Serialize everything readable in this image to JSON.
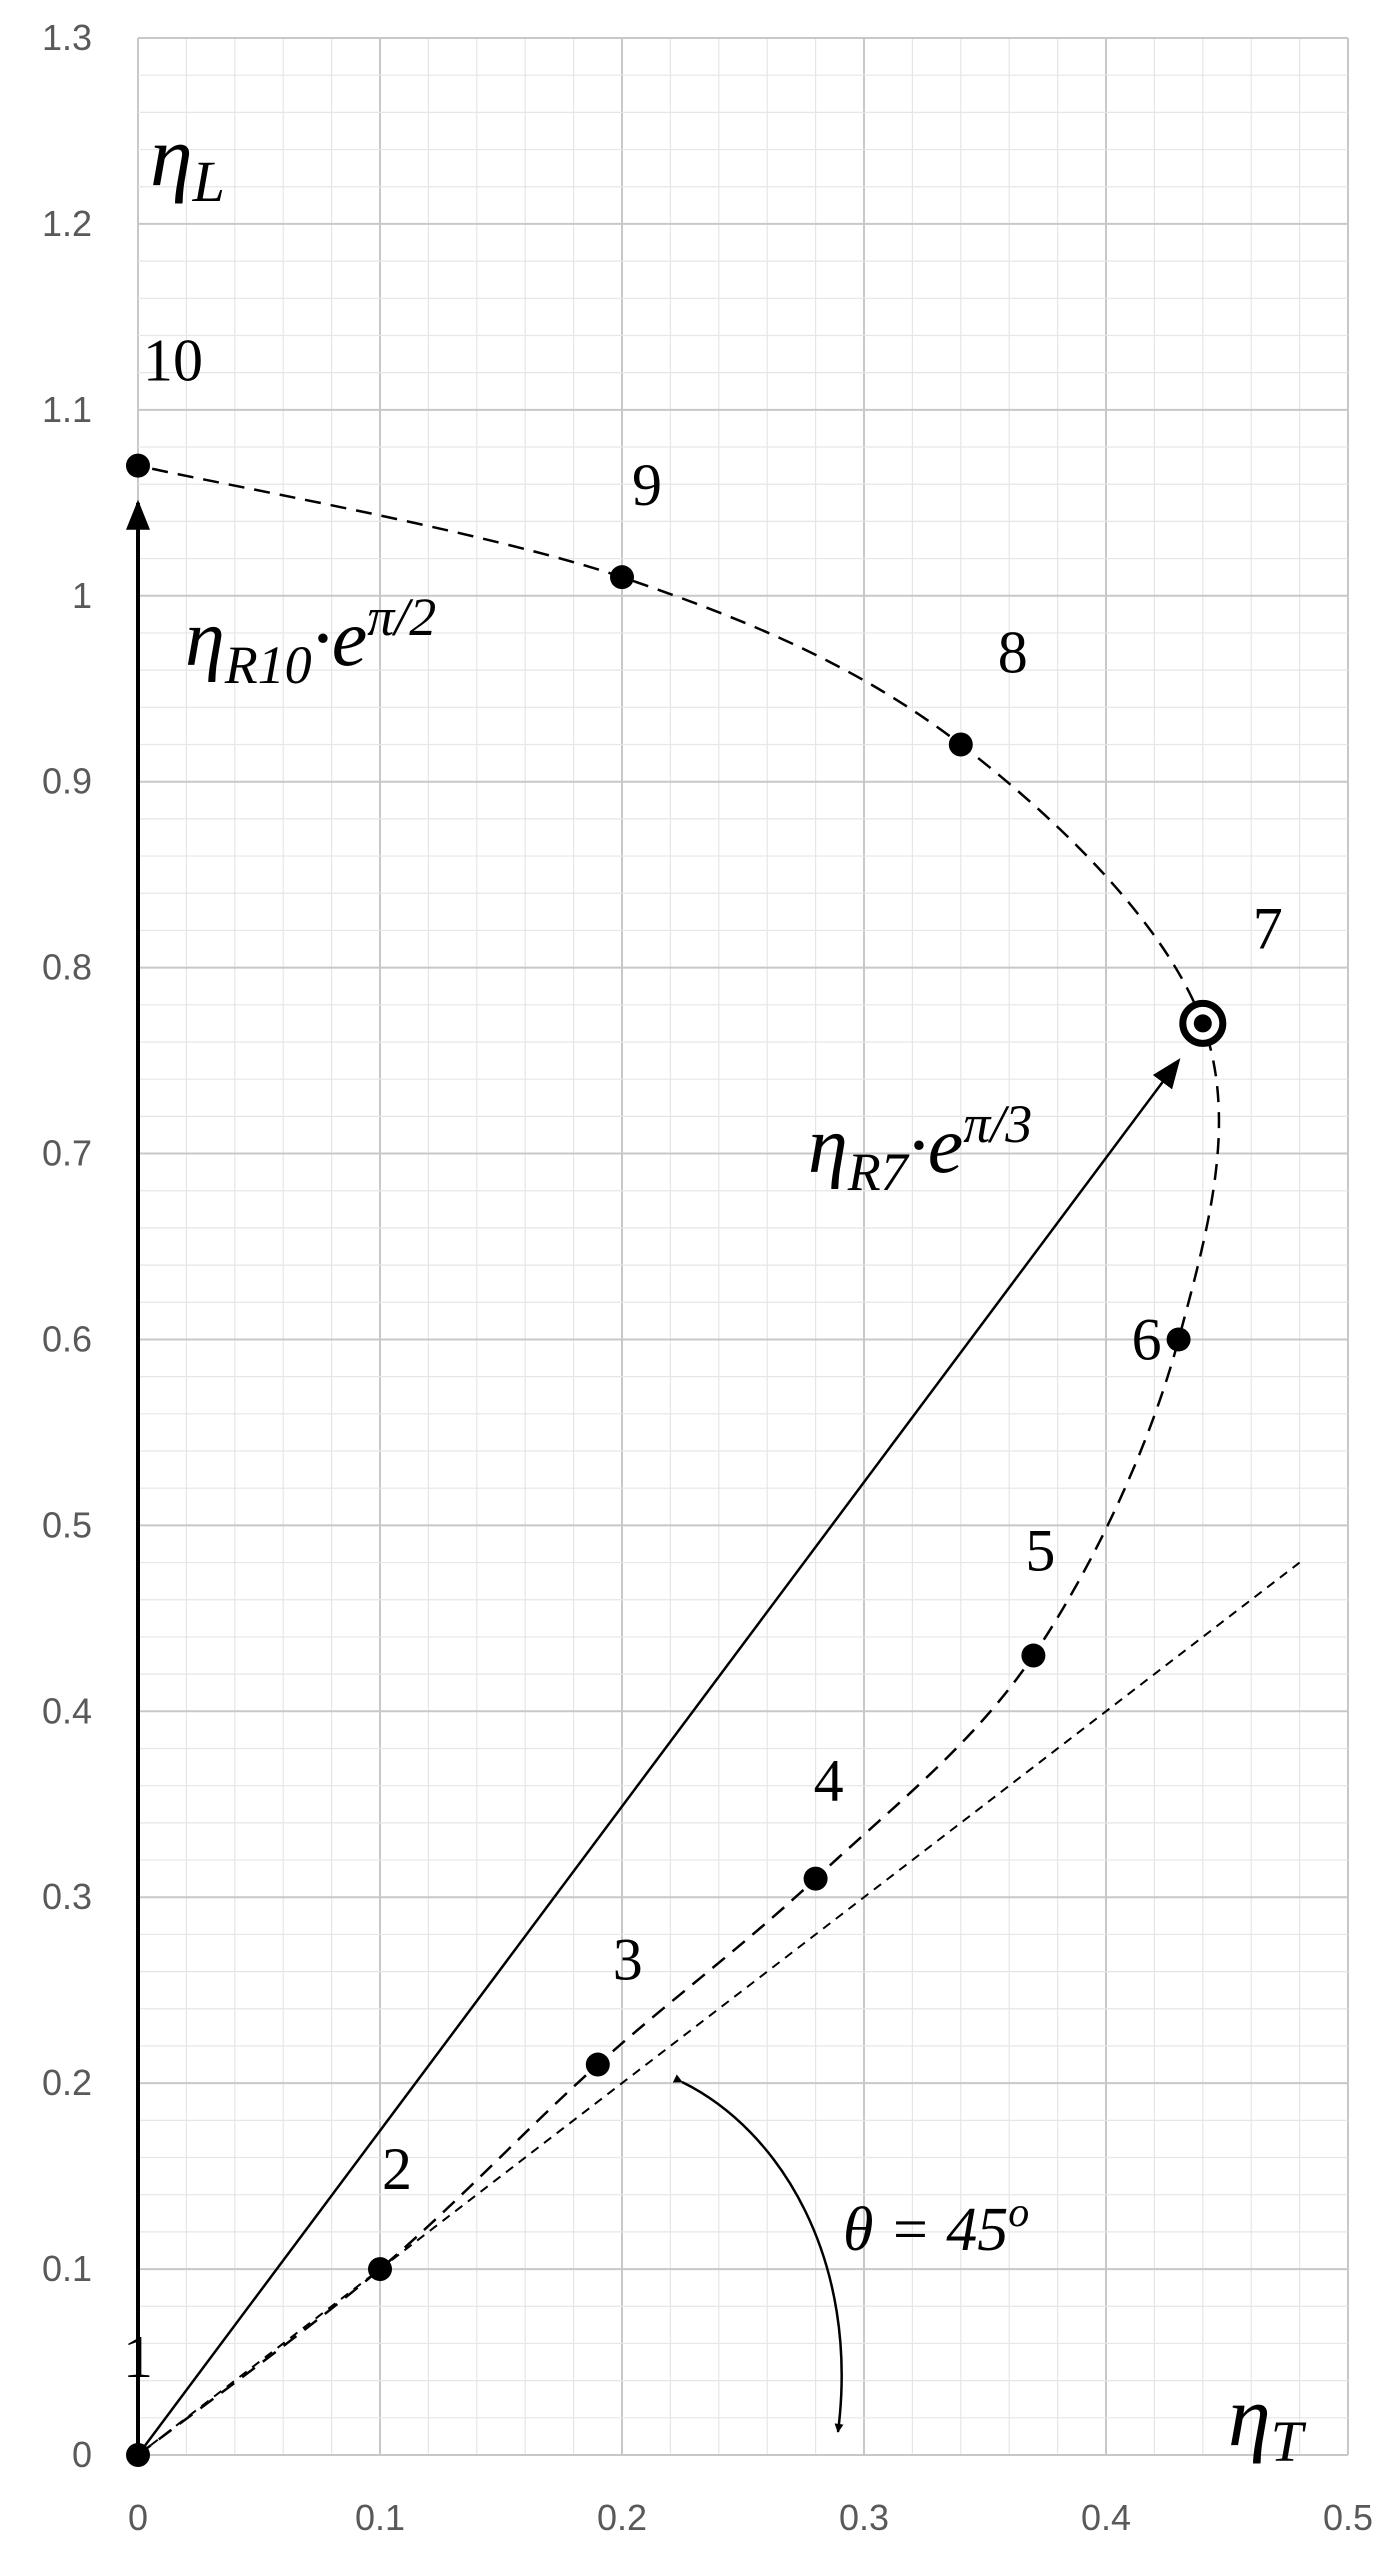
{
  "chart_data": {
    "type": "scatter",
    "x_axis": {
      "min": 0,
      "max": 0.5,
      "major_step": 0.1,
      "minor_step": 0.02,
      "tick_labels": [
        "0",
        "0.1",
        "0.2",
        "0.3",
        "0.4",
        "0.5"
      ]
    },
    "y_axis": {
      "min": 0,
      "max": 1.3,
      "major_step": 0.1,
      "minor_step": 0.02,
      "tick_labels": [
        "0",
        "0.1",
        "0.2",
        "0.3",
        "0.4",
        "0.5",
        "0.6",
        "0.7",
        "0.8",
        "0.9",
        "1",
        "1.1",
        "1.2",
        "1.3"
      ]
    },
    "grid": true,
    "points": [
      {
        "label": "1",
        "x": 0,
        "y": 0
      },
      {
        "label": "2",
        "x": 0.1,
        "y": 0.1
      },
      {
        "label": "3",
        "x": 0.19,
        "y": 0.21
      },
      {
        "label": "4",
        "x": 0.28,
        "y": 0.31
      },
      {
        "label": "5",
        "x": 0.37,
        "y": 0.43
      },
      {
        "label": "6",
        "x": 0.43,
        "y": 0.6
      },
      {
        "label": "7",
        "x": 0.44,
        "y": 0.77,
        "highlight": true
      },
      {
        "label": "8",
        "x": 0.34,
        "y": 0.92
      },
      {
        "label": "9",
        "x": 0.2,
        "y": 1.01
      },
      {
        "label": "10",
        "x": 0,
        "y": 1.07
      }
    ],
    "reference_line": {
      "angle_deg": 45,
      "from": [
        0,
        0
      ],
      "to": [
        0.48,
        0.48
      ]
    },
    "vectors": [
      {
        "from": [
          0,
          0
        ],
        "to": [
          0.43,
          0.75
        ]
      },
      {
        "from": [
          0,
          0
        ],
        "to": [
          0,
          1.05
        ]
      }
    ],
    "annotations": {
      "y_axis_symbol": {
        "base": "η",
        "sub": "L"
      },
      "x_axis_symbol": {
        "base": "η",
        "sub": "T"
      },
      "vector_r10": {
        "base": "η",
        "sub": "R10",
        "mid": "·e",
        "sup": "π/2"
      },
      "vector_r7": {
        "base": "η",
        "sub": "R7",
        "mid": "·e",
        "sup": "π/3"
      },
      "angle": {
        "text": "θ = 45",
        "sup": "o"
      }
    }
  }
}
